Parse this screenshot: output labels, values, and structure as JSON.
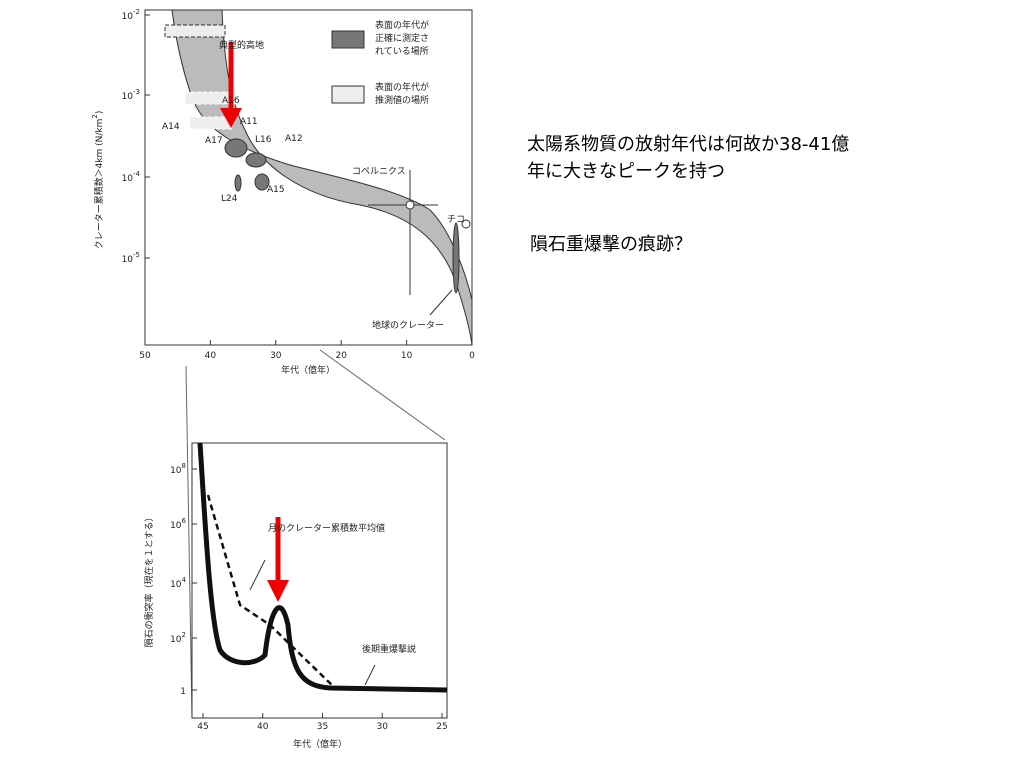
{
  "slide": {
    "lines": [
      "太陽系物質の放射年代は何故か38-41億",
      "年に大きなピークを持つ",
      "隕石重爆撃の痕跡？"
    ]
  },
  "figure_top": {
    "y_axis_label": "クレーター累積数＞4km (N/km",
    "y_axis_label_exp": "2",
    "y_axis_label_end": ")",
    "yticks": [
      {
        "base": "10",
        "exp": "-2"
      },
      {
        "base": "10",
        "exp": "-3"
      },
      {
        "base": "10",
        "exp": "-4"
      },
      {
        "base": "10",
        "exp": "-5"
      }
    ],
    "xticks": [
      50,
      40,
      30,
      20,
      10,
      0
    ],
    "x_axis_label": "年代（億年）",
    "legend": [
      [
        "表面の年代が",
        "正確に測定さ",
        "れている場所"
      ],
      [
        "表面の年代が",
        "推測値の場所"
      ]
    ],
    "labels": [
      "典型的高地",
      "A16",
      "A11",
      "A14",
      "A17",
      "L16",
      "A12",
      "A15",
      "L24",
      "コペルニクス",
      "チコ",
      "地球のクレーター"
    ]
  },
  "figure_bottom": {
    "y_axis_label": "隕石の衝突率（現在を１とする）",
    "yticks": [
      {
        "base": "10",
        "exp": "8"
      },
      {
        "base": "10",
        "exp": "6"
      },
      {
        "base": "10",
        "exp": "4"
      },
      {
        "base": "10",
        "exp": "2"
      },
      {
        "base": "1",
        "exp": ""
      }
    ],
    "xticks": [
      45,
      40,
      35,
      30,
      25
    ],
    "x_axis_label": "年代（億年）",
    "labels": [
      "月のクレーター累積数平均値",
      "後期重爆撃説"
    ]
  }
}
